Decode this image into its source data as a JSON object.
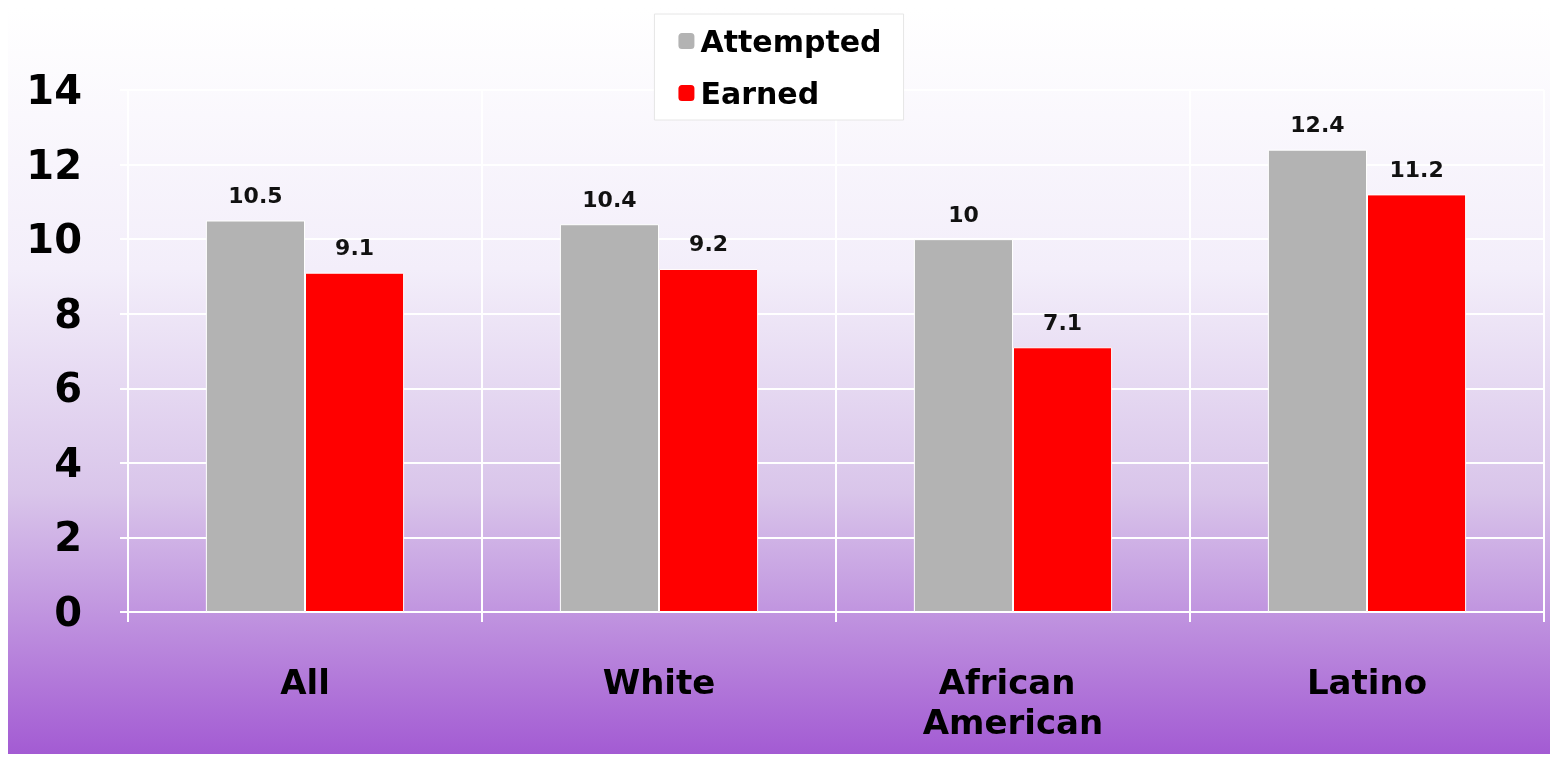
{
  "chart_data": {
    "type": "bar",
    "categories": [
      "All",
      "White",
      "African American",
      "Latino"
    ],
    "series": [
      {
        "name": "Attempted",
        "color": "#b3b3b3",
        "values": [
          10.5,
          10.4,
          10,
          12.4
        ]
      },
      {
        "name": "Earned",
        "color": "#ff0000",
        "values": [
          9.1,
          9.2,
          7.1,
          11.2
        ]
      }
    ],
    "ylim": [
      0,
      14
    ],
    "yticks": [
      0,
      2,
      4,
      6,
      8,
      10,
      12,
      14
    ],
    "grid": true,
    "legend": "top",
    "data_labels": true
  }
}
